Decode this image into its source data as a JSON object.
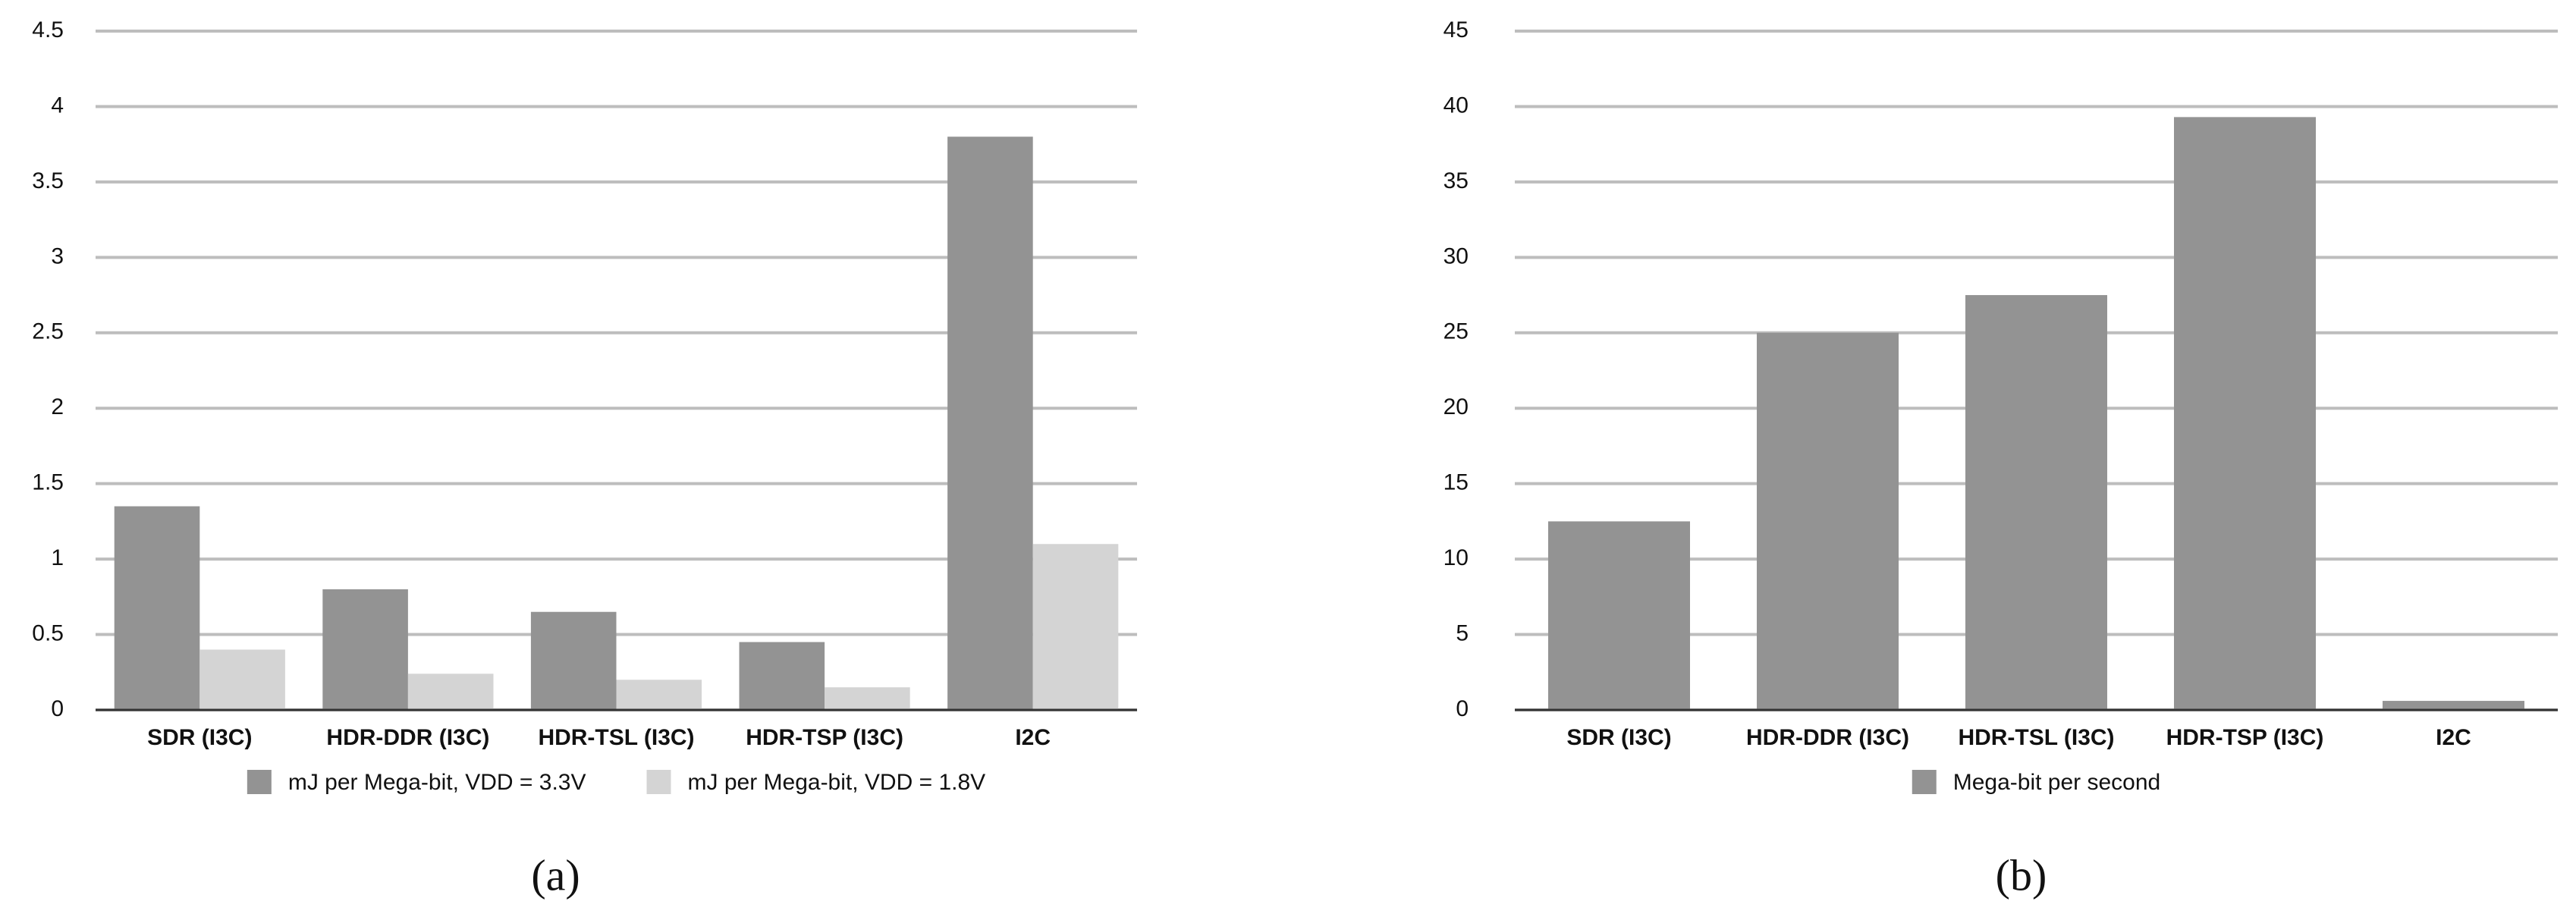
{
  "chart_data": [
    {
      "type": "bar",
      "caption": "(a)",
      "categories": [
        "SDR (I3C)",
        "HDR-DDR (I3C)",
        "HDR-TSL (I3C)",
        "HDR-TSP (I3C)",
        "I2C"
      ],
      "series": [
        {
          "name": "mJ per Mega-bit, VDD = 3.3V",
          "color": "#939393",
          "values": [
            1.35,
            0.8,
            0.65,
            0.45,
            3.8
          ]
        },
        {
          "name": "mJ per Mega-bit, VDD = 1.8V",
          "color": "#d4d4d4",
          "values": [
            0.4,
            0.24,
            0.2,
            0.15,
            1.1
          ]
        }
      ],
      "ylim": [
        0,
        4.5
      ],
      "yticks": [
        0,
        0.5,
        1,
        1.5,
        2,
        2.5,
        3,
        3.5,
        4,
        4.5
      ],
      "grid": true,
      "legend": "bottom"
    },
    {
      "type": "bar",
      "caption": "(b)",
      "categories": [
        "SDR (I3C)",
        "HDR-DDR (I3C)",
        "HDR-TSL (I3C)",
        "HDR-TSP (I3C)",
        "I2C"
      ],
      "series": [
        {
          "name": "Mega-bit per second",
          "color": "#939393",
          "values": [
            12.5,
            25,
            27.5,
            39.3,
            0.6
          ]
        }
      ],
      "ylim": [
        0,
        45
      ],
      "yticks": [
        0,
        5,
        10,
        15,
        20,
        25,
        30,
        35,
        40,
        45
      ],
      "grid": true,
      "legend": "bottom"
    }
  ]
}
